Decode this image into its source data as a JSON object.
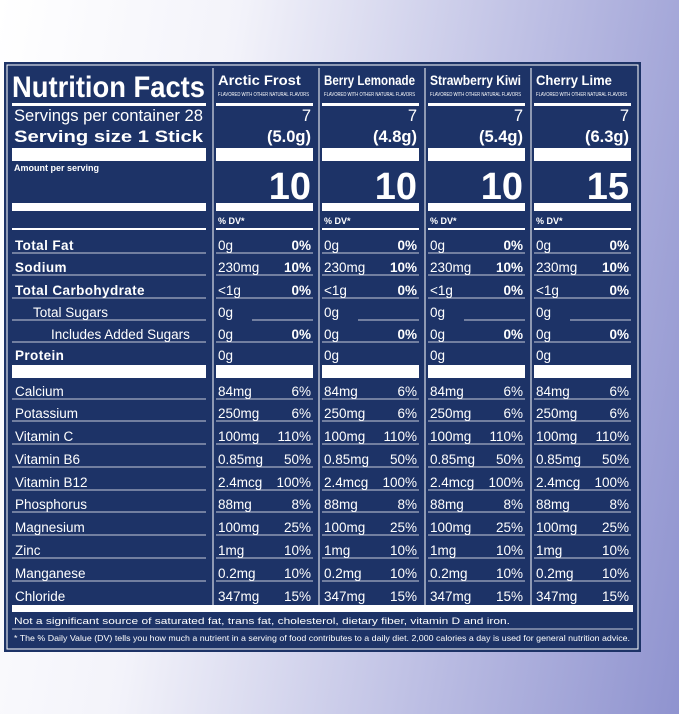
{
  "title": "Nutrition Facts",
  "servings_label": "Servings per container 28",
  "serving_size_label": "Serving size 1 Stick",
  "amount_label": "Amount per serving",
  "flavors": [
    {
      "name": "Arctic Frost",
      "note": "FLAVORED WITH OTHER NATURAL FLAVORS",
      "servings": 7,
      "size": "(5.0g)",
      "calories": 10,
      "dv_header": "% DV*",
      "values": [
        [
          "0g",
          "0%"
        ],
        [
          "230mg",
          "10%"
        ],
        [
          "<1g",
          "0%"
        ],
        [
          "0g",
          null
        ],
        [
          "0g",
          "0%"
        ],
        [
          "0g",
          null
        ],
        [
          "84mg",
          "6%"
        ],
        [
          "250mg",
          "6%"
        ],
        [
          "100mg",
          "110%"
        ],
        [
          "0.85mg",
          "50%"
        ],
        [
          "2.4mcg",
          "100%"
        ],
        [
          "88mg",
          "8%"
        ],
        [
          "100mg",
          "25%"
        ],
        [
          "1mg",
          "10%"
        ],
        [
          "0.2mg",
          "10%"
        ],
        [
          "347mg",
          "15%"
        ]
      ]
    },
    {
      "name": "Berry Lemonade",
      "note": "FLAVORED WITH OTHER NATURAL FLAVORS",
      "servings": 7,
      "size": "(4.8g)",
      "calories": 10,
      "dv_header": "% DV*",
      "values": [
        [
          "0g",
          "0%"
        ],
        [
          "230mg",
          "10%"
        ],
        [
          "<1g",
          "0%"
        ],
        [
          "0g",
          null
        ],
        [
          "0g",
          "0%"
        ],
        [
          "0g",
          null
        ],
        [
          "84mg",
          "6%"
        ],
        [
          "250mg",
          "6%"
        ],
        [
          "100mg",
          "110%"
        ],
        [
          "0.85mg",
          "50%"
        ],
        [
          "2.4mcg",
          "100%"
        ],
        [
          "88mg",
          "8%"
        ],
        [
          "100mg",
          "25%"
        ],
        [
          "1mg",
          "10%"
        ],
        [
          "0.2mg",
          "10%"
        ],
        [
          "347mg",
          "15%"
        ]
      ]
    },
    {
      "name": "Strawberry Kiwi",
      "note": "FLAVORED WITH OTHER NATURAL FLAVORS",
      "servings": 7,
      "size": "(5.4g)",
      "calories": 10,
      "dv_header": "% DV*",
      "values": [
        [
          "0g",
          "0%"
        ],
        [
          "230mg",
          "10%"
        ],
        [
          "<1g",
          "0%"
        ],
        [
          "0g",
          null
        ],
        [
          "0g",
          "0%"
        ],
        [
          "0g",
          null
        ],
        [
          "84mg",
          "6%"
        ],
        [
          "250mg",
          "6%"
        ],
        [
          "100mg",
          "110%"
        ],
        [
          "0.85mg",
          "50%"
        ],
        [
          "2.4mcg",
          "100%"
        ],
        [
          "88mg",
          "8%"
        ],
        [
          "100mg",
          "25%"
        ],
        [
          "1mg",
          "10%"
        ],
        [
          "0.2mg",
          "10%"
        ],
        [
          "347mg",
          "15%"
        ]
      ]
    },
    {
      "name": "Cherry Lime",
      "note": "FLAVORED WITH OTHER NATURAL FLAVORS",
      "servings": 7,
      "size": "(6.3g)",
      "calories": 15,
      "dv_header": "% DV*",
      "values": [
        [
          "0g",
          "0%"
        ],
        [
          "230mg",
          "10%"
        ],
        [
          "<1g",
          "0%"
        ],
        [
          "0g",
          null
        ],
        [
          "0g",
          "0%"
        ],
        [
          "0g",
          null
        ],
        [
          "84mg",
          "6%"
        ],
        [
          "250mg",
          "6%"
        ],
        [
          "100mg",
          "110%"
        ],
        [
          "0.85mg",
          "50%"
        ],
        [
          "2.4mcg",
          "100%"
        ],
        [
          "88mg",
          "8%"
        ],
        [
          "100mg",
          "25%"
        ],
        [
          "1mg",
          "10%"
        ],
        [
          "0.2mg",
          "10%"
        ],
        [
          "347mg",
          "15%"
        ]
      ]
    }
  ],
  "nutrients": [
    {
      "name": "Total Fat",
      "bold": true,
      "indent": 0
    },
    {
      "name": "Sodium",
      "bold": true,
      "indent": 0
    },
    {
      "name": "Total Carbohydrate",
      "bold": true,
      "indent": 0
    },
    {
      "name": "Total Sugars",
      "bold": false,
      "indent": 1
    },
    {
      "name": "Includes Added Sugars",
      "bold": false,
      "indent": 2
    },
    {
      "name": "Protein",
      "bold": true,
      "indent": 0
    },
    {
      "name": "Calcium",
      "bold": false,
      "indent": 0
    },
    {
      "name": "Potassium",
      "bold": false,
      "indent": 0
    },
    {
      "name": "Vitamin C",
      "bold": false,
      "indent": 0
    },
    {
      "name": "Vitamin B6",
      "bold": false,
      "indent": 0
    },
    {
      "name": "Vitamin B12",
      "bold": false,
      "indent": 0
    },
    {
      "name": "Phosphorus",
      "bold": false,
      "indent": 0
    },
    {
      "name": "Magnesium",
      "bold": false,
      "indent": 0
    },
    {
      "name": "Zinc",
      "bold": false,
      "indent": 0
    },
    {
      "name": "Manganese",
      "bold": false,
      "indent": 0
    },
    {
      "name": "Chloride",
      "bold": false,
      "indent": 0
    }
  ],
  "footnote_1": "Not a significant source of saturated fat, trans fat, cholesterol, dietary fiber, vitamin D and iron.",
  "footnote_2": "* The % Daily Value (DV) tells you how much a nutrient in a serving of food contributes to a daily diet. 2,000 calories a day is used for general nutrition advice."
}
